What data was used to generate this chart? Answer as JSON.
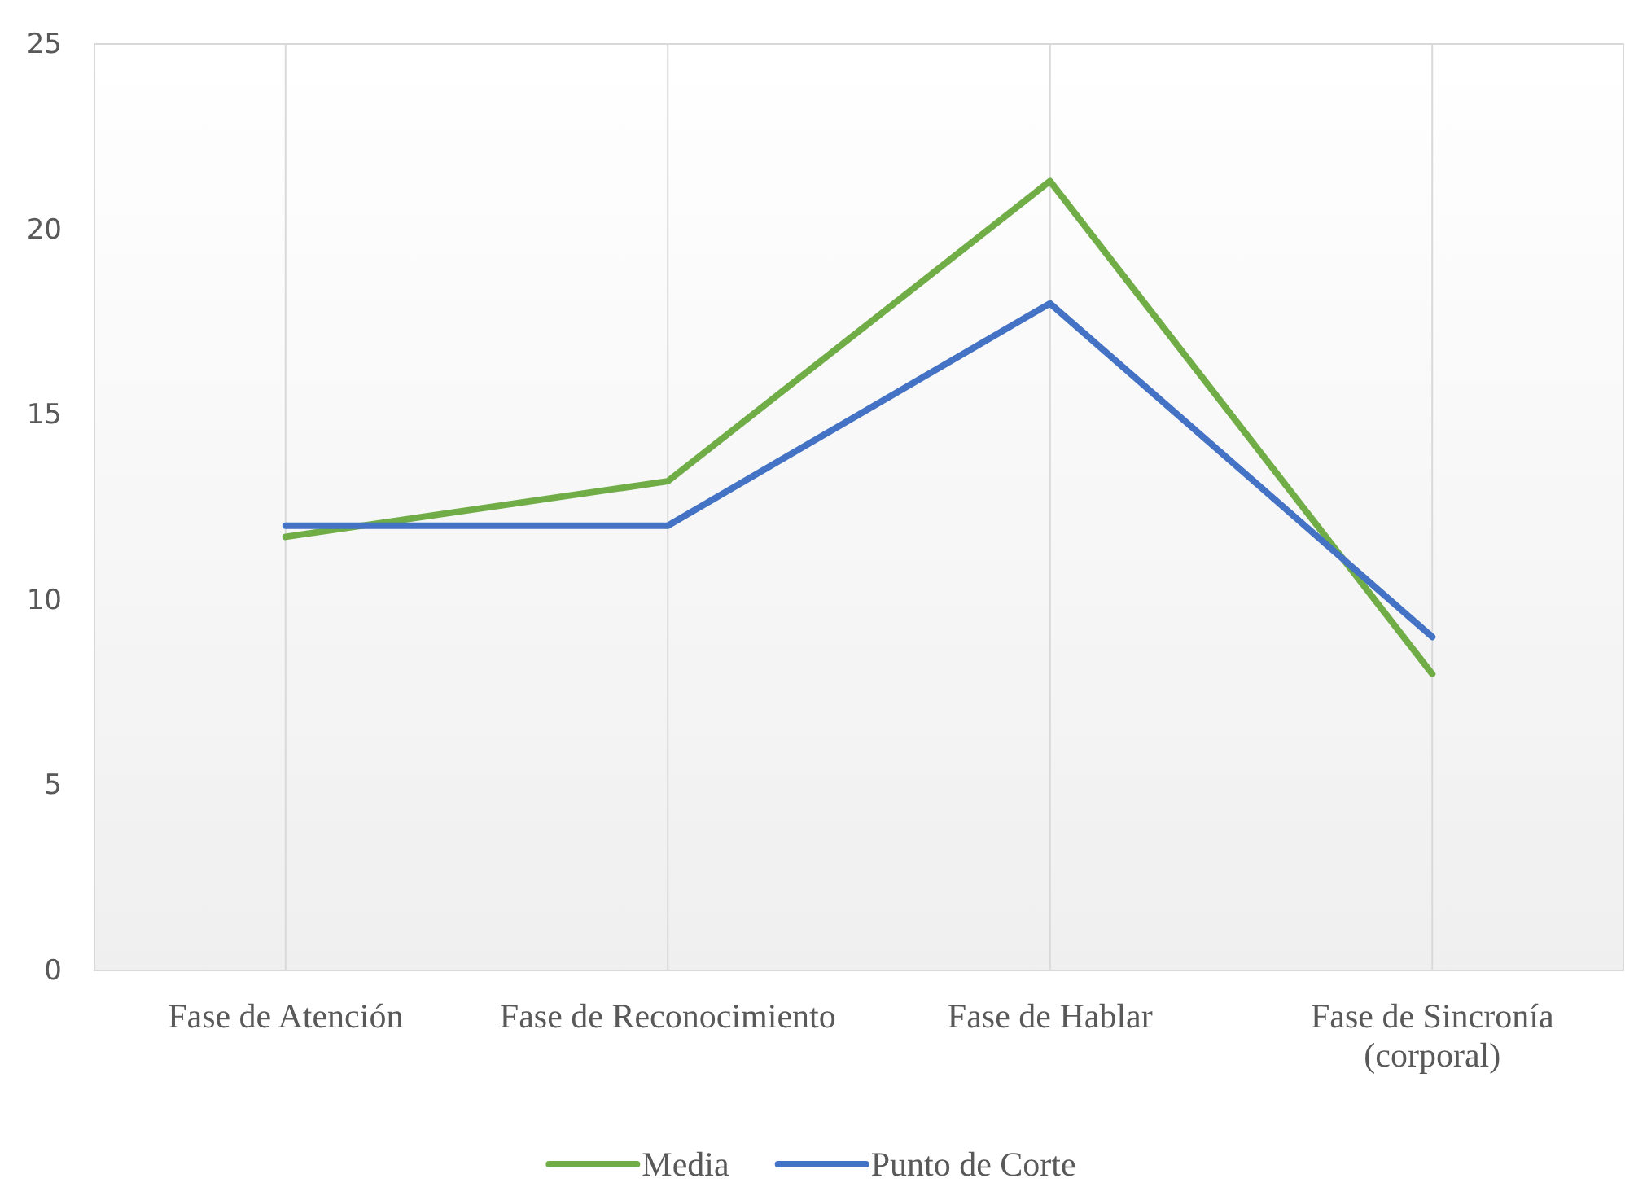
{
  "chart_data": {
    "type": "line",
    "categories": [
      "Fase de Atención",
      "Fase de Reconocimiento",
      "Fase de Hablar",
      "Fase de Sincronía (corporal)"
    ],
    "series": [
      {
        "name": "Media",
        "color": "#70ad47",
        "values": [
          11.7,
          13.2,
          21.3,
          8.0
        ]
      },
      {
        "name": "Punto de Corte",
        "color": "#4472c4",
        "values": [
          12,
          12,
          18,
          9
        ]
      }
    ],
    "ylim": [
      0,
      25
    ],
    "yticks": [
      0,
      5,
      10,
      15,
      20,
      25
    ],
    "grid": "x",
    "legend": "bottom",
    "line_style": "solid",
    "marker": "none"
  }
}
